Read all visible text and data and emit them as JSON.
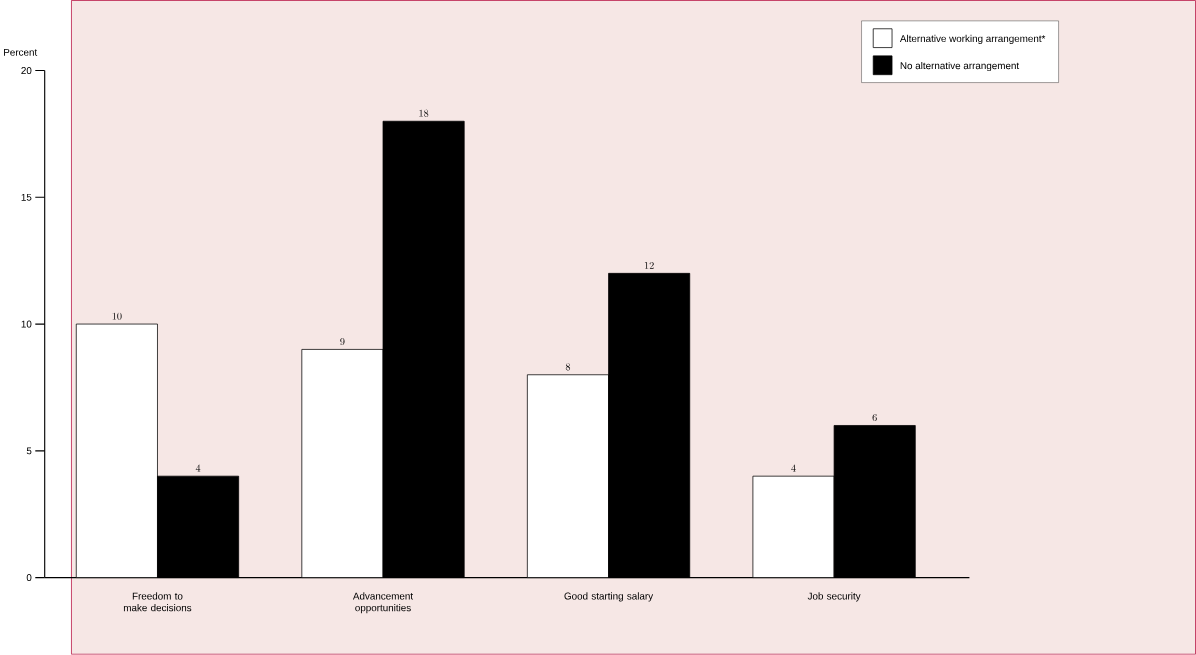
{
  "chart_data": {
    "type": "bar",
    "ylabel": "Percent",
    "categories": [
      "Freedom to make decisions",
      "Advancement opportunities",
      "Good starting salary",
      "Job security"
    ],
    "series": [
      {
        "name": "Alternative working arrangement*",
        "color": "#ffffff",
        "values": [
          10,
          9,
          8,
          4
        ]
      },
      {
        "name": "No alternative arrangement",
        "color": "#000000",
        "values": [
          4,
          18,
          12,
          6
        ]
      }
    ],
    "ylim": [
      0,
      20
    ],
    "yticks": [
      0,
      5,
      10,
      15,
      20
    ],
    "data_labels": true,
    "legend": "top right"
  }
}
